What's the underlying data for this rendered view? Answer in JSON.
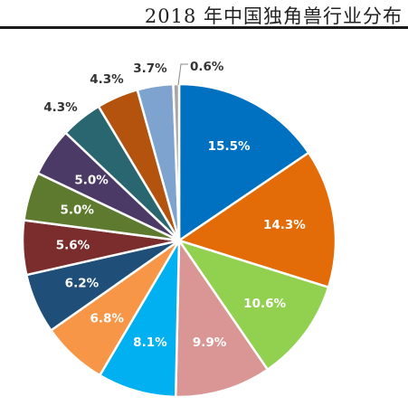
{
  "title": "2018 年中国独角兽行业分布",
  "chart_data": {
    "type": "pie",
    "title": "2018 年中国独角兽行业分布",
    "start_angle_deg": 0,
    "direction": "clockwise",
    "slices": [
      {
        "value": 15.5,
        "label": "15.5%",
        "color": "#0070C0",
        "label_inside": true
      },
      {
        "value": 14.3,
        "label": "14.3%",
        "color": "#E36C09",
        "label_inside": true
      },
      {
        "value": 10.6,
        "label": "10.6%",
        "color": "#92D050",
        "label_inside": true
      },
      {
        "value": 9.9,
        "label": "9.9%",
        "color": "#D99694",
        "label_inside": true
      },
      {
        "value": 8.1,
        "label": "8.1%",
        "color": "#00B0F0",
        "label_inside": true
      },
      {
        "value": 6.8,
        "label": "6.8%",
        "color": "#F79646",
        "label_inside": true
      },
      {
        "value": 6.2,
        "label": "6.2%",
        "color": "#1F4E79",
        "label_inside": true
      },
      {
        "value": 5.6,
        "label": "5.6%",
        "color": "#7B2C2C",
        "label_inside": true
      },
      {
        "value": 5.0,
        "label": "5.0%",
        "color": "#5E7A2E",
        "label_inside": true
      },
      {
        "value": 5.0,
        "label": "5.0%",
        "color": "#4B3A66",
        "label_inside": true
      },
      {
        "value": 4.3,
        "label": "4.3%",
        "color": "#2A6670",
        "label_inside": false
      },
      {
        "value": 4.3,
        "label": "4.3%",
        "color": "#B4530E",
        "label_inside": false
      },
      {
        "value": 3.7,
        "label": "3.7%",
        "color": "#7FA3CF",
        "label_inside": false
      },
      {
        "value": 0.6,
        "label": "0.6%",
        "color": "#A6A6A6",
        "label_inside": false
      }
    ]
  }
}
